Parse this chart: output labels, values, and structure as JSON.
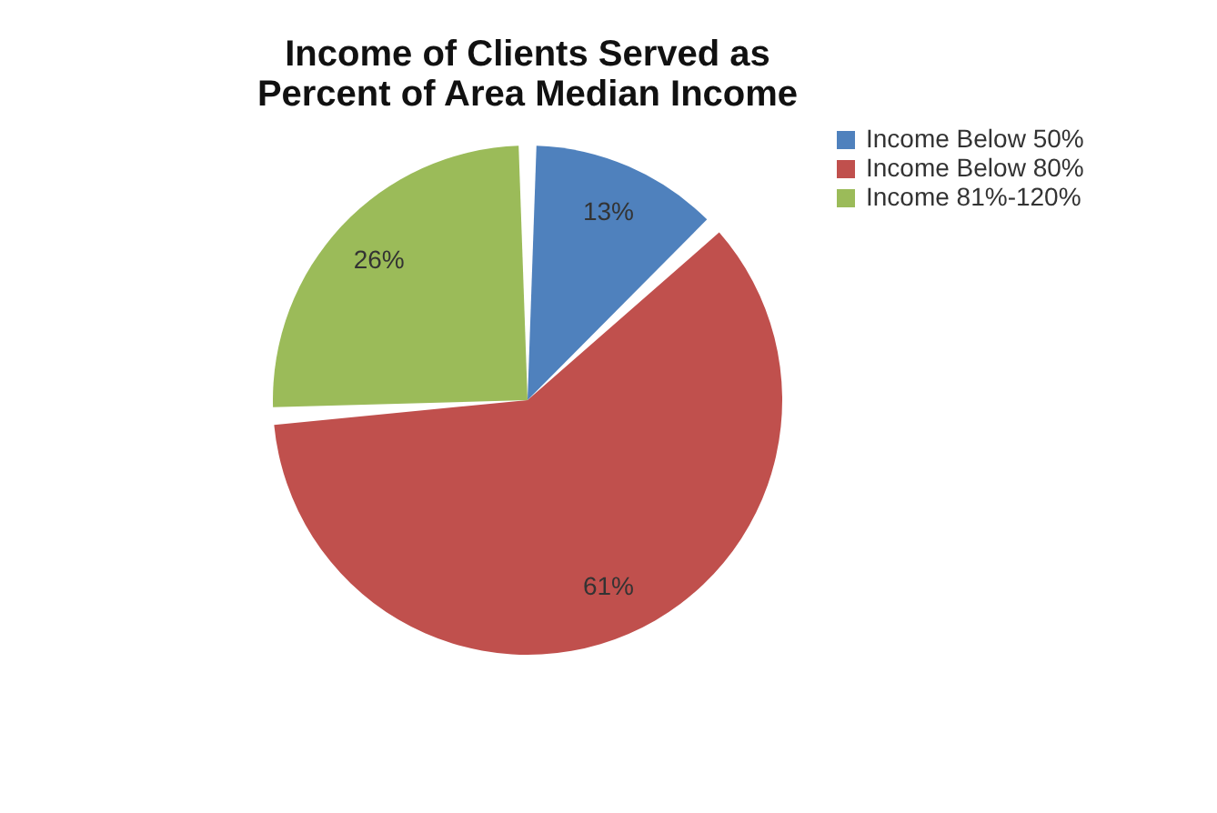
{
  "chart_data": {
    "type": "pie",
    "title": "Income of Clients Served as Percent of Area Median Income",
    "categories": [
      "Income Below 50%",
      "Income Below 80%",
      "Income 81%-120%"
    ],
    "values": [
      13,
      61,
      26
    ],
    "colors": [
      "#4f81bd",
      "#c0504d",
      "#9bbb59"
    ],
    "value_labels": [
      "13%",
      "61%",
      "26%"
    ],
    "legend": "right"
  }
}
